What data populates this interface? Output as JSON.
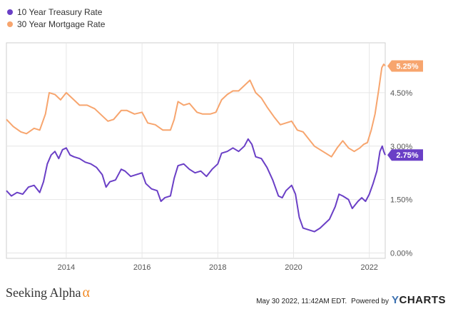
{
  "footer": {
    "brand": "Seeking Alpha",
    "brand_symbol": "α",
    "timestamp": "May 30 2022, 11:42AM EDT.",
    "powered_by": "Powered by",
    "provider_y": "Y",
    "provider_rest": "CHARTS"
  },
  "chart_data": {
    "type": "line",
    "title": "",
    "xlabel": "",
    "ylabel": "",
    "x_ticks": [
      "2014",
      "2016",
      "2018",
      "2020",
      "2022"
    ],
    "x_tick_values": [
      2014,
      2016,
      2018,
      2020,
      2022
    ],
    "xlim": [
      2012.42,
      2022.42
    ],
    "y_ticks": [
      "0.00%",
      "1.50%",
      "3.00%",
      "4.50%"
    ],
    "y_tick_values": [
      0,
      1.5,
      3.0,
      4.5
    ],
    "ylim": [
      -0.15,
      5.9
    ],
    "grid": true,
    "legend_position": "top-left",
    "series": [
      {
        "name": "10 Year Treasury Rate",
        "color": "#6a3fc6",
        "end_label": "2.75%",
        "points": [
          [
            2012.42,
            1.75
          ],
          [
            2012.55,
            1.6
          ],
          [
            2012.7,
            1.7
          ],
          [
            2012.85,
            1.65
          ],
          [
            2013.0,
            1.85
          ],
          [
            2013.15,
            1.9
          ],
          [
            2013.3,
            1.7
          ],
          [
            2013.4,
            2.0
          ],
          [
            2013.5,
            2.5
          ],
          [
            2013.6,
            2.75
          ],
          [
            2013.7,
            2.85
          ],
          [
            2013.8,
            2.65
          ],
          [
            2013.9,
            2.9
          ],
          [
            2014.0,
            2.95
          ],
          [
            2014.1,
            2.75
          ],
          [
            2014.2,
            2.7
          ],
          [
            2014.35,
            2.65
          ],
          [
            2014.5,
            2.55
          ],
          [
            2014.65,
            2.5
          ],
          [
            2014.8,
            2.4
          ],
          [
            2014.95,
            2.2
          ],
          [
            2015.05,
            1.85
          ],
          [
            2015.15,
            2.0
          ],
          [
            2015.3,
            2.05
          ],
          [
            2015.45,
            2.35
          ],
          [
            2015.55,
            2.3
          ],
          [
            2015.7,
            2.15
          ],
          [
            2015.85,
            2.2
          ],
          [
            2016.0,
            2.25
          ],
          [
            2016.1,
            1.95
          ],
          [
            2016.25,
            1.8
          ],
          [
            2016.4,
            1.75
          ],
          [
            2016.5,
            1.45
          ],
          [
            2016.6,
            1.55
          ],
          [
            2016.75,
            1.6
          ],
          [
            2016.85,
            2.1
          ],
          [
            2016.95,
            2.45
          ],
          [
            2017.1,
            2.5
          ],
          [
            2017.25,
            2.35
          ],
          [
            2017.4,
            2.25
          ],
          [
            2017.55,
            2.3
          ],
          [
            2017.7,
            2.15
          ],
          [
            2017.85,
            2.35
          ],
          [
            2018.0,
            2.5
          ],
          [
            2018.1,
            2.8
          ],
          [
            2018.25,
            2.85
          ],
          [
            2018.4,
            2.95
          ],
          [
            2018.55,
            2.85
          ],
          [
            2018.7,
            3.0
          ],
          [
            2018.8,
            3.2
          ],
          [
            2018.9,
            3.05
          ],
          [
            2019.0,
            2.7
          ],
          [
            2019.15,
            2.65
          ],
          [
            2019.3,
            2.4
          ],
          [
            2019.45,
            2.05
          ],
          [
            2019.6,
            1.6
          ],
          [
            2019.7,
            1.55
          ],
          [
            2019.8,
            1.75
          ],
          [
            2019.95,
            1.9
          ],
          [
            2020.05,
            1.65
          ],
          [
            2020.15,
            1.0
          ],
          [
            2020.25,
            0.7
          ],
          [
            2020.4,
            0.65
          ],
          [
            2020.55,
            0.6
          ],
          [
            2020.7,
            0.7
          ],
          [
            2020.85,
            0.85
          ],
          [
            2020.95,
            0.95
          ],
          [
            2021.1,
            1.3
          ],
          [
            2021.2,
            1.65
          ],
          [
            2021.3,
            1.6
          ],
          [
            2021.45,
            1.5
          ],
          [
            2021.55,
            1.25
          ],
          [
            2021.7,
            1.45
          ],
          [
            2021.8,
            1.55
          ],
          [
            2021.9,
            1.45
          ],
          [
            2022.0,
            1.65
          ],
          [
            2022.1,
            1.95
          ],
          [
            2022.2,
            2.3
          ],
          [
            2022.28,
            2.85
          ],
          [
            2022.34,
            3.0
          ],
          [
            2022.38,
            2.85
          ],
          [
            2022.42,
            2.75
          ]
        ]
      },
      {
        "name": "30 Year Mortgage Rate",
        "color": "#f7a56e",
        "end_label": "5.25%",
        "points": [
          [
            2012.42,
            3.75
          ],
          [
            2012.6,
            3.55
          ],
          [
            2012.8,
            3.4
          ],
          [
            2012.95,
            3.35
          ],
          [
            2013.15,
            3.5
          ],
          [
            2013.3,
            3.45
          ],
          [
            2013.45,
            3.9
          ],
          [
            2013.55,
            4.5
          ],
          [
            2013.7,
            4.45
          ],
          [
            2013.85,
            4.3
          ],
          [
            2014.0,
            4.5
          ],
          [
            2014.15,
            4.35
          ],
          [
            2014.35,
            4.15
          ],
          [
            2014.55,
            4.15
          ],
          [
            2014.75,
            4.05
          ],
          [
            2014.95,
            3.85
          ],
          [
            2015.1,
            3.7
          ],
          [
            2015.25,
            3.75
          ],
          [
            2015.45,
            4.0
          ],
          [
            2015.6,
            4.0
          ],
          [
            2015.8,
            3.9
          ],
          [
            2016.0,
            3.95
          ],
          [
            2016.15,
            3.65
          ],
          [
            2016.35,
            3.6
          ],
          [
            2016.55,
            3.45
          ],
          [
            2016.75,
            3.45
          ],
          [
            2016.85,
            3.75
          ],
          [
            2016.95,
            4.25
          ],
          [
            2017.1,
            4.15
          ],
          [
            2017.25,
            4.2
          ],
          [
            2017.45,
            3.95
          ],
          [
            2017.6,
            3.9
          ],
          [
            2017.8,
            3.9
          ],
          [
            2017.95,
            3.95
          ],
          [
            2018.1,
            4.3
          ],
          [
            2018.25,
            4.45
          ],
          [
            2018.4,
            4.55
          ],
          [
            2018.55,
            4.55
          ],
          [
            2018.7,
            4.7
          ],
          [
            2018.85,
            4.85
          ],
          [
            2019.0,
            4.5
          ],
          [
            2019.15,
            4.35
          ],
          [
            2019.3,
            4.1
          ],
          [
            2019.5,
            3.8
          ],
          [
            2019.65,
            3.6
          ],
          [
            2019.8,
            3.65
          ],
          [
            2019.95,
            3.7
          ],
          [
            2020.1,
            3.45
          ],
          [
            2020.25,
            3.4
          ],
          [
            2020.4,
            3.2
          ],
          [
            2020.55,
            3.0
          ],
          [
            2020.7,
            2.9
          ],
          [
            2020.85,
            2.8
          ],
          [
            2021.0,
            2.7
          ],
          [
            2021.15,
            2.95
          ],
          [
            2021.3,
            3.15
          ],
          [
            2021.45,
            2.95
          ],
          [
            2021.6,
            2.85
          ],
          [
            2021.75,
            2.95
          ],
          [
            2021.85,
            3.05
          ],
          [
            2021.95,
            3.1
          ],
          [
            2022.05,
            3.45
          ],
          [
            2022.15,
            3.9
          ],
          [
            2022.25,
            4.6
          ],
          [
            2022.33,
            5.2
          ],
          [
            2022.38,
            5.3
          ],
          [
            2022.42,
            5.25
          ]
        ]
      }
    ]
  }
}
